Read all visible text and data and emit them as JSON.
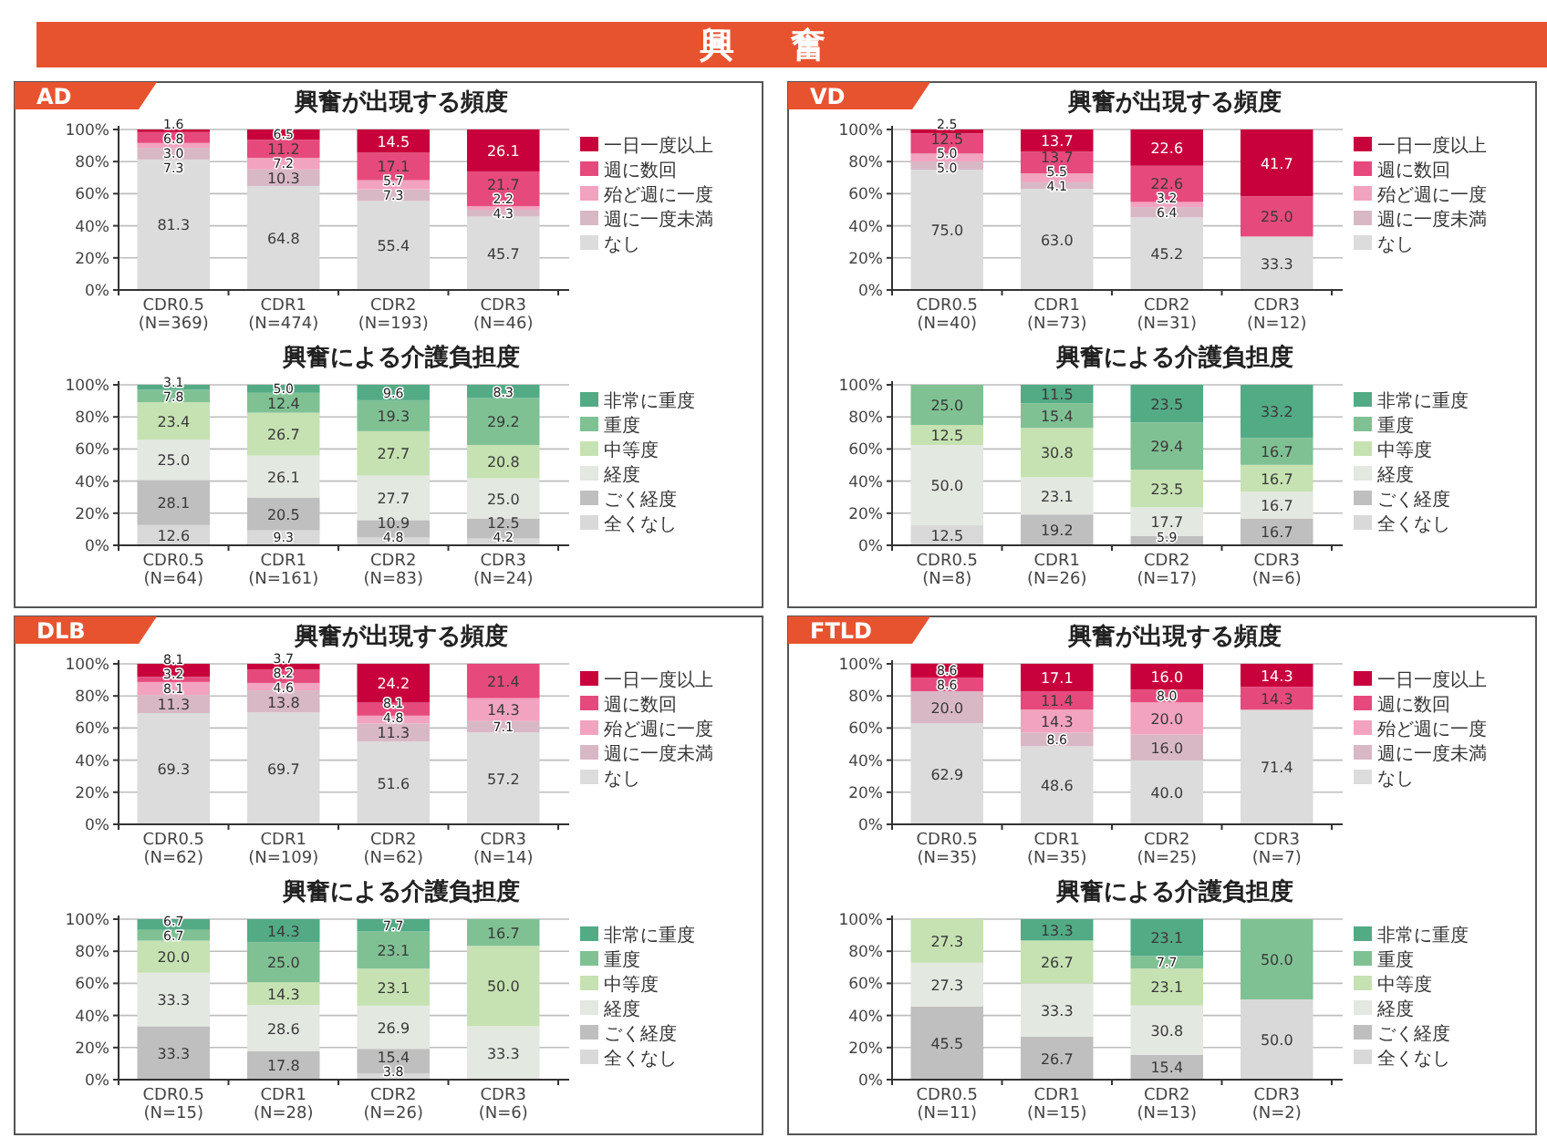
{
  "chart_data": [
    {
      "type": "bar",
      "title": "興奮が出現する頻度",
      "subtitle": "AD",
      "annotations": [
        "興 奮"
      ],
      "categories": [
        "CDR0.5\n(N=369)",
        "CDR1\n(N=474)",
        "CDR2\n(N=193)",
        "CDR3\n(N=46)"
      ],
      "stacked": true,
      "legend": "right",
      "grid": "y",
      "ylim": [
        0,
        100
      ],
      "yticks": [
        {
          "value": 0,
          "label": "0%"
        },
        {
          "value": 20,
          "label": "20%"
        },
        {
          "value": 40,
          "label": "40%"
        },
        {
          "value": 60,
          "label": "60%"
        },
        {
          "value": 80,
          "label": "80%"
        },
        {
          "value": 100,
          "label": "100%"
        }
      ],
      "series": [
        {
          "name": "なし",
          "color": "#dcdcdc",
          "values": [
            81.3,
            64.8,
            55.4,
            45.7
          ],
          "value_labels": [
            "81.3",
            "64.8",
            "55.4",
            "45.7"
          ]
        },
        {
          "name": "週に一度未満",
          "color": "#d9b8c6",
          "values": [
            7.3,
            10.3,
            7.3,
            4.3
          ],
          "value_labels": [
            "7.3",
            "10.3",
            "7.3",
            "4.3"
          ]
        },
        {
          "name": "殆ど週に一度",
          "color": "#f2a3c0",
          "values": [
            3.0,
            7.2,
            5.7,
            2.2
          ],
          "value_labels": [
            "3.0",
            "7.2",
            "5.7",
            "2.2"
          ]
        },
        {
          "name": "週に数回",
          "color": "#e64a7d",
          "values": [
            6.8,
            11.2,
            17.1,
            21.7
          ],
          "value_labels": [
            "6.8",
            "11.2",
            "17.1",
            "21.7"
          ]
        },
        {
          "name": "一日一度以上",
          "color": "#c8003c",
          "values": [
            1.6,
            6.5,
            14.5,
            26.1
          ],
          "value_labels": [
            "1.6",
            "6.5",
            "14.5",
            "26.1"
          ]
        }
      ]
    },
    {
      "type": "bar",
      "title": "興奮による介護負担度",
      "categories": [
        "CDR0.5\n(N=64)",
        "CDR1\n(N=161)",
        "CDR2\n(N=83)",
        "CDR3\n(N=24)"
      ],
      "stacked": true,
      "legend": "right",
      "grid": "y",
      "ylim": [
        0,
        100
      ],
      "yticks": [
        {
          "value": 0,
          "label": "0%"
        },
        {
          "value": 20,
          "label": "20%"
        },
        {
          "value": 40,
          "label": "40%"
        },
        {
          "value": 60,
          "label": "60%"
        },
        {
          "value": 80,
          "label": "80%"
        },
        {
          "value": 100,
          "label": "100%"
        }
      ],
      "series": [
        {
          "name": "全くなし",
          "color": "#d9d9d9",
          "values": [
            12.6,
            9.3,
            4.8,
            4.2
          ],
          "value_labels": [
            "12.6",
            "9.3",
            "4.8",
            "4.2"
          ]
        },
        {
          "name": "ごく経度",
          "color": "#bfbfbf",
          "values": [
            28.1,
            20.5,
            10.9,
            12.5
          ],
          "value_labels": [
            "28.1",
            "20.5",
            "10.9",
            "12.5"
          ]
        },
        {
          "name": "経度",
          "color": "#e3e8e1",
          "values": [
            25.0,
            26.1,
            27.7,
            25.0
          ],
          "value_labels": [
            "25.0",
            "26.1",
            "27.7",
            "25.0"
          ]
        },
        {
          "name": "中等度",
          "color": "#c6e2b2",
          "values": [
            23.4,
            26.7,
            27.7,
            20.8
          ],
          "value_labels": [
            "23.4",
            "26.7",
            "27.7",
            "20.8"
          ]
        },
        {
          "name": "重度",
          "color": "#80c194",
          "values": [
            7.8,
            12.4,
            19.3,
            29.2
          ],
          "value_labels": [
            "7.8",
            "12.4",
            "19.3",
            "29.2"
          ]
        },
        {
          "name": "非常に重度",
          "color": "#52ab85",
          "values": [
            3.1,
            5.0,
            9.6,
            8.3
          ],
          "value_labels": [
            "3.1",
            "5.0",
            "9.6",
            "8.3"
          ]
        }
      ]
    },
    {
      "type": "bar",
      "title": "興奮が出現する頻度",
      "subtitle": "VD",
      "categories": [
        "CDR0.5\n(N=40)",
        "CDR1\n(N=73)",
        "CDR2\n(N=31)",
        "CDR3\n(N=12)"
      ],
      "stacked": true,
      "legend": "right",
      "grid": "y",
      "ylim": [
        0,
        100
      ],
      "yticks": [
        {
          "value": 0,
          "label": "0%"
        },
        {
          "value": 20,
          "label": "20%"
        },
        {
          "value": 40,
          "label": "40%"
        },
        {
          "value": 60,
          "label": "60%"
        },
        {
          "value": 80,
          "label": "80%"
        },
        {
          "value": 100,
          "label": "100%"
        }
      ],
      "series": [
        {
          "name": "なし",
          "color": "#dcdcdc",
          "values": [
            75.0,
            63.0,
            45.2,
            33.3
          ],
          "value_labels": [
            "75.0",
            "63.0",
            "45.2",
            "33.3"
          ]
        },
        {
          "name": "週に一度未満",
          "color": "#d9b8c6",
          "values": [
            5.0,
            4.1,
            6.4,
            null
          ],
          "value_labels": [
            "5.0",
            "4.1",
            "6.4",
            null
          ]
        },
        {
          "name": "殆ど週に一度",
          "color": "#f2a3c0",
          "values": [
            5.0,
            5.5,
            3.2,
            null
          ],
          "value_labels": [
            "5.0",
            "5.5",
            "3.2",
            null
          ]
        },
        {
          "name": "週に数回",
          "color": "#e64a7d",
          "values": [
            12.5,
            13.7,
            22.6,
            25.0
          ],
          "value_labels": [
            "12.5",
            "13.7",
            "22.6",
            "25.0"
          ]
        },
        {
          "name": "一日一度以上",
          "color": "#c8003c",
          "values": [
            2.5,
            13.7,
            22.6,
            41.7
          ],
          "value_labels": [
            "2.5",
            "13.7",
            "22.6",
            "41.7"
          ]
        }
      ]
    },
    {
      "type": "bar",
      "title": "興奮による介護負担度",
      "categories": [
        "CDR0.5\n(N=8)",
        "CDR1\n(N=26)",
        "CDR2\n(N=17)",
        "CDR3\n(N=6)"
      ],
      "stacked": true,
      "legend": "right",
      "grid": "y",
      "ylim": [
        0,
        100
      ],
      "yticks": [
        {
          "value": 0,
          "label": "0%"
        },
        {
          "value": 20,
          "label": "20%"
        },
        {
          "value": 40,
          "label": "40%"
        },
        {
          "value": 60,
          "label": "60%"
        },
        {
          "value": 80,
          "label": "80%"
        },
        {
          "value": 100,
          "label": "100%"
        }
      ],
      "series": [
        {
          "name": "全くなし",
          "color": "#d9d9d9",
          "values": [
            12.5,
            null,
            null,
            null
          ],
          "value_labels": [
            "12.5",
            null,
            null,
            null
          ]
        },
        {
          "name": "ごく経度",
          "color": "#bfbfbf",
          "values": [
            null,
            19.2,
            5.9,
            16.7
          ],
          "value_labels": [
            null,
            "19.2",
            "5.9",
            "16.7"
          ]
        },
        {
          "name": "経度",
          "color": "#e3e8e1",
          "values": [
            50.0,
            23.1,
            17.7,
            16.7
          ],
          "value_labels": [
            "50.0",
            "23.1",
            "17.7",
            "16.7"
          ]
        },
        {
          "name": "中等度",
          "color": "#c6e2b2",
          "values": [
            12.5,
            30.8,
            23.5,
            16.7
          ],
          "value_labels": [
            "12.5",
            "30.8",
            "23.5",
            "16.7"
          ]
        },
        {
          "name": "重度",
          "color": "#80c194",
          "values": [
            25.0,
            15.4,
            29.4,
            16.7
          ],
          "value_labels": [
            "25.0",
            "15.4",
            "29.4",
            "16.7"
          ]
        },
        {
          "name": "非常に重度",
          "color": "#52ab85",
          "values": [
            null,
            11.5,
            23.5,
            33.2
          ],
          "value_labels": [
            null,
            "11.5",
            "23.5",
            "33.2"
          ]
        }
      ]
    },
    {
      "type": "bar",
      "title": "興奮が出現する頻度",
      "subtitle": "DLB",
      "categories": [
        "CDR0.5\n(N=62)",
        "CDR1\n(N=109)",
        "CDR2\n(N=62)",
        "CDR3\n(N=14)"
      ],
      "stacked": true,
      "legend": "right",
      "grid": "y",
      "ylim": [
        0,
        100
      ],
      "yticks": [
        {
          "value": 0,
          "label": "0%"
        },
        {
          "value": 20,
          "label": "20%"
        },
        {
          "value": 40,
          "label": "40%"
        },
        {
          "value": 60,
          "label": "60%"
        },
        {
          "value": 80,
          "label": "80%"
        },
        {
          "value": 100,
          "label": "100%"
        }
      ],
      "series": [
        {
          "name": "なし",
          "color": "#dcdcdc",
          "values": [
            69.3,
            69.7,
            51.6,
            57.2
          ],
          "value_labels": [
            "69.3",
            "69.7",
            "51.6",
            "57.2"
          ]
        },
        {
          "name": "週に一度未満",
          "color": "#d9b8c6",
          "values": [
            11.3,
            13.8,
            11.3,
            7.1
          ],
          "value_labels": [
            "11.3",
            "13.8",
            "11.3",
            "7.1"
          ]
        },
        {
          "name": "殆ど週に一度",
          "color": "#f2a3c0",
          "values": [
            8.1,
            4.6,
            4.8,
            14.3
          ],
          "value_labels": [
            "8.1",
            "4.6",
            "4.8",
            "14.3"
          ]
        },
        {
          "name": "週に数回",
          "color": "#e64a7d",
          "values": [
            3.2,
            8.2,
            8.1,
            21.4
          ],
          "value_labels": [
            "3.2",
            "8.2",
            "8.1",
            "21.4"
          ]
        },
        {
          "name": "一日一度以上",
          "color": "#c8003c",
          "values": [
            8.1,
            3.7,
            24.2,
            null
          ],
          "value_labels": [
            "8.1",
            "3.7",
            "24.2",
            null
          ]
        }
      ]
    },
    {
      "type": "bar",
      "title": "興奮による介護負担度",
      "categories": [
        "CDR0.5\n(N=15)",
        "CDR1\n(N=28)",
        "CDR2\n(N=26)",
        "CDR3\n(N=6)"
      ],
      "stacked": true,
      "legend": "right",
      "grid": "y",
      "ylim": [
        0,
        100
      ],
      "yticks": [
        {
          "value": 0,
          "label": "0%"
        },
        {
          "value": 20,
          "label": "20%"
        },
        {
          "value": 40,
          "label": "40%"
        },
        {
          "value": 60,
          "label": "60%"
        },
        {
          "value": 80,
          "label": "80%"
        },
        {
          "value": 100,
          "label": "100%"
        }
      ],
      "series": [
        {
          "name": "全くなし",
          "color": "#d9d9d9",
          "values": [
            null,
            null,
            3.8,
            null
          ],
          "value_labels": [
            null,
            null,
            "3.8",
            null
          ]
        },
        {
          "name": "ごく経度",
          "color": "#bfbfbf",
          "values": [
            33.3,
            17.8,
            15.4,
            null
          ],
          "value_labels": [
            "33.3",
            "17.8",
            "15.4",
            null
          ]
        },
        {
          "name": "経度",
          "color": "#e3e8e1",
          "values": [
            33.3,
            28.6,
            26.9,
            33.3
          ],
          "value_labels": [
            "33.3",
            "28.6",
            "26.9",
            "33.3"
          ]
        },
        {
          "name": "中等度",
          "color": "#c6e2b2",
          "values": [
            20.0,
            14.3,
            23.1,
            50.0
          ],
          "value_labels": [
            "20.0",
            "14.3",
            "23.1",
            "50.0"
          ]
        },
        {
          "name": "重度",
          "color": "#80c194",
          "values": [
            6.7,
            25.0,
            23.1,
            16.7
          ],
          "value_labels": [
            "6.7",
            "25.0",
            "23.1",
            "16.7"
          ]
        },
        {
          "name": "非常に重度",
          "color": "#52ab85",
          "values": [
            6.7,
            14.3,
            7.7,
            null
          ],
          "value_labels": [
            "6.7",
            "14.3",
            "7.7",
            null
          ]
        }
      ]
    },
    {
      "type": "bar",
      "title": "興奮が出現する頻度",
      "subtitle": "FTLD",
      "categories": [
        "CDR0.5\n(N=35)",
        "CDR1\n(N=35)",
        "CDR2\n(N=25)",
        "CDR3\n(N=7)"
      ],
      "stacked": true,
      "legend": "right",
      "grid": "y",
      "ylim": [
        0,
        100
      ],
      "yticks": [
        {
          "value": 0,
          "label": "0%"
        },
        {
          "value": 20,
          "label": "20%"
        },
        {
          "value": 40,
          "label": "40%"
        },
        {
          "value": 60,
          "label": "60%"
        },
        {
          "value": 80,
          "label": "80%"
        },
        {
          "value": 100,
          "label": "100%"
        }
      ],
      "series": [
        {
          "name": "なし",
          "color": "#dcdcdc",
          "values": [
            62.9,
            48.6,
            40.0,
            71.4
          ],
          "value_labels": [
            "62.9",
            "48.6",
            "40.0",
            "71.4"
          ]
        },
        {
          "name": "週に一度未満",
          "color": "#d9b8c6",
          "values": [
            20.0,
            8.6,
            16.0,
            null
          ],
          "value_labels": [
            "20.0",
            "8.6",
            "16.0",
            null
          ]
        },
        {
          "name": "殆ど週に一度",
          "color": "#f2a3c0",
          "values": [
            null,
            14.3,
            20.0,
            null
          ],
          "value_labels": [
            null,
            "14.3",
            "20.0",
            null
          ]
        },
        {
          "name": "週に数回",
          "color": "#e64a7d",
          "values": [
            8.6,
            11.4,
            8.0,
            14.3
          ],
          "value_labels": [
            "8.6",
            "11.4",
            "8.0",
            "14.3"
          ]
        },
        {
          "name": "一日一度以上",
          "color": "#c8003c",
          "values": [
            8.6,
            17.1,
            16.0,
            14.3
          ],
          "value_labels": [
            "8.6",
            "17.1",
            "16.0",
            "14.3"
          ]
        }
      ]
    },
    {
      "type": "bar",
      "title": "興奮による介護負担度",
      "categories": [
        "CDR0.5\n(N=11)",
        "CDR1\n(N=15)",
        "CDR2\n(N=13)",
        "CDR3\n(N=2)"
      ],
      "stacked": true,
      "legend": "right",
      "grid": "y",
      "ylim": [
        0,
        100
      ],
      "yticks": [
        {
          "value": 0,
          "label": "0%"
        },
        {
          "value": 20,
          "label": "20%"
        },
        {
          "value": 40,
          "label": "40%"
        },
        {
          "value": 60,
          "label": "60%"
        },
        {
          "value": 80,
          "label": "80%"
        },
        {
          "value": 100,
          "label": "100%"
        }
      ],
      "series": [
        {
          "name": "全くなし",
          "color": "#d9d9d9",
          "values": [
            null,
            null,
            null,
            50.0
          ],
          "value_labels": [
            null,
            null,
            null,
            "50.0"
          ]
        },
        {
          "name": "ごく経度",
          "color": "#bfbfbf",
          "values": [
            45.5,
            26.7,
            15.4,
            null
          ],
          "value_labels": [
            "45.5",
            "26.7",
            "15.4",
            null
          ]
        },
        {
          "name": "経度",
          "color": "#e3e8e1",
          "values": [
            27.3,
            33.3,
            30.8,
            null
          ],
          "value_labels": [
            "27.3",
            "33.3",
            "30.8",
            null
          ]
        },
        {
          "name": "中等度",
          "color": "#c6e2b2",
          "values": [
            27.3,
            26.7,
            23.1,
            null
          ],
          "value_labels": [
            "27.3",
            "26.7",
            "23.1",
            null
          ]
        },
        {
          "name": "重度",
          "color": "#80c194",
          "values": [
            null,
            null,
            7.7,
            50.0
          ],
          "value_labels": [
            null,
            null,
            "7.7",
            "50.0"
          ]
        },
        {
          "name": "非常に重度",
          "color": "#52ab85",
          "values": [
            null,
            13.3,
            23.1,
            null
          ],
          "value_labels": [
            null,
            "13.3",
            "23.1",
            null
          ]
        }
      ]
    }
  ]
}
